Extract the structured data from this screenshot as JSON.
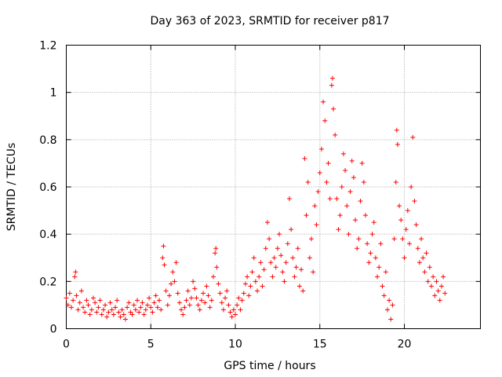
{
  "chart_data": {
    "type": "scatter",
    "title": "Day 363 of 2023, SRMTID for receiver p817",
    "xlabel": "GPS time / hours",
    "ylabel": "SRMTID / TECUs",
    "xlim": [
      0,
      24.5
    ],
    "ylim": [
      0,
      1.2
    ],
    "x_ticks": [
      0,
      5,
      10,
      15,
      20
    ],
    "x_tick_labels": [
      "0",
      "5",
      "10",
      "15",
      "20"
    ],
    "y_ticks": [
      0,
      0.2,
      0.4,
      0.6,
      0.8,
      1.0,
      1.2
    ],
    "y_tick_labels": [
      "0",
      "0.2",
      "0.4",
      "0.6",
      "0.8",
      "1",
      "1.2"
    ],
    "grid": true,
    "marker": "plus",
    "color": "#ff0000",
    "series": [
      {
        "name": "SRMTID",
        "points": [
          [
            0.0,
            0.13
          ],
          [
            0.1,
            0.1
          ],
          [
            0.2,
            0.15
          ],
          [
            0.3,
            0.09
          ],
          [
            0.4,
            0.12
          ],
          [
            0.5,
            0.22
          ],
          [
            0.55,
            0.24
          ],
          [
            0.6,
            0.14
          ],
          [
            0.7,
            0.08
          ],
          [
            0.8,
            0.11
          ],
          [
            0.9,
            0.16
          ],
          [
            1.0,
            0.09
          ],
          [
            1.1,
            0.07
          ],
          [
            1.2,
            0.12
          ],
          [
            1.3,
            0.1
          ],
          [
            1.4,
            0.06
          ],
          [
            1.5,
            0.08
          ],
          [
            1.6,
            0.13
          ],
          [
            1.7,
            0.11
          ],
          [
            1.8,
            0.07
          ],
          [
            1.9,
            0.09
          ],
          [
            2.0,
            0.12
          ],
          [
            2.1,
            0.06
          ],
          [
            2.2,
            0.08
          ],
          [
            2.3,
            0.1
          ],
          [
            2.4,
            0.05
          ],
          [
            2.5,
            0.07
          ],
          [
            2.6,
            0.11
          ],
          [
            2.7,
            0.08
          ],
          [
            2.8,
            0.06
          ],
          [
            2.9,
            0.09
          ],
          [
            3.0,
            0.12
          ],
          [
            3.1,
            0.07
          ],
          [
            3.2,
            0.05
          ],
          [
            3.3,
            0.08
          ],
          [
            3.4,
            0.06
          ],
          [
            3.5,
            0.04
          ],
          [
            3.6,
            0.09
          ],
          [
            3.7,
            0.11
          ],
          [
            3.8,
            0.07
          ],
          [
            3.9,
            0.06
          ],
          [
            4.0,
            0.1
          ],
          [
            4.1,
            0.08
          ],
          [
            4.2,
            0.12
          ],
          [
            4.3,
            0.07
          ],
          [
            4.4,
            0.09
          ],
          [
            4.5,
            0.11
          ],
          [
            4.6,
            0.06
          ],
          [
            4.7,
            0.08
          ],
          [
            4.8,
            0.1
          ],
          [
            4.9,
            0.13
          ],
          [
            5.0,
            0.09
          ],
          [
            5.1,
            0.07
          ],
          [
            5.2,
            0.11
          ],
          [
            5.3,
            0.14
          ],
          [
            5.4,
            0.09
          ],
          [
            5.5,
            0.12
          ],
          [
            5.6,
            0.08
          ],
          [
            5.7,
            0.3
          ],
          [
            5.75,
            0.35
          ],
          [
            5.8,
            0.27
          ],
          [
            5.9,
            0.16
          ],
          [
            6.0,
            0.1
          ],
          [
            6.1,
            0.14
          ],
          [
            6.2,
            0.19
          ],
          [
            6.3,
            0.24
          ],
          [
            6.4,
            0.2
          ],
          [
            6.5,
            0.28
          ],
          [
            6.6,
            0.15
          ],
          [
            6.7,
            0.11
          ],
          [
            6.8,
            0.08
          ],
          [
            6.9,
            0.06
          ],
          [
            7.0,
            0.09
          ],
          [
            7.1,
            0.12
          ],
          [
            7.2,
            0.16
          ],
          [
            7.3,
            0.1
          ],
          [
            7.4,
            0.13
          ],
          [
            7.5,
            0.2
          ],
          [
            7.6,
            0.17
          ],
          [
            7.7,
            0.13
          ],
          [
            7.8,
            0.1
          ],
          [
            7.9,
            0.08
          ],
          [
            8.0,
            0.12
          ],
          [
            8.1,
            0.15
          ],
          [
            8.2,
            0.11
          ],
          [
            8.3,
            0.18
          ],
          [
            8.4,
            0.14
          ],
          [
            8.5,
            0.09
          ],
          [
            8.6,
            0.12
          ],
          [
            8.7,
            0.22
          ],
          [
            8.8,
            0.32
          ],
          [
            8.85,
            0.34
          ],
          [
            8.9,
            0.26
          ],
          [
            9.0,
            0.19
          ],
          [
            9.1,
            0.15
          ],
          [
            9.2,
            0.11
          ],
          [
            9.3,
            0.08
          ],
          [
            9.4,
            0.13
          ],
          [
            9.5,
            0.16
          ],
          [
            9.6,
            0.1
          ],
          [
            9.7,
            0.07
          ],
          [
            9.8,
            0.05
          ],
          [
            9.9,
            0.08
          ],
          [
            10.0,
            0.06
          ],
          [
            10.1,
            0.1
          ],
          [
            10.2,
            0.13
          ],
          [
            10.3,
            0.08
          ],
          [
            10.4,
            0.12
          ],
          [
            10.5,
            0.15
          ],
          [
            10.6,
            0.19
          ],
          [
            10.7,
            0.22
          ],
          [
            10.8,
            0.14
          ],
          [
            10.9,
            0.18
          ],
          [
            11.0,
            0.24
          ],
          [
            11.1,
            0.3
          ],
          [
            11.2,
            0.2
          ],
          [
            11.3,
            0.16
          ],
          [
            11.4,
            0.22
          ],
          [
            11.5,
            0.28
          ],
          [
            11.6,
            0.18
          ],
          [
            11.7,
            0.25
          ],
          [
            11.8,
            0.34
          ],
          [
            11.9,
            0.45
          ],
          [
            12.0,
            0.38
          ],
          [
            12.1,
            0.28
          ],
          [
            12.2,
            0.22
          ],
          [
            12.3,
            0.3
          ],
          [
            12.4,
            0.26
          ],
          [
            12.5,
            0.34
          ],
          [
            12.6,
            0.4
          ],
          [
            12.7,
            0.31
          ],
          [
            12.8,
            0.24
          ],
          [
            12.9,
            0.2
          ],
          [
            13.0,
            0.28
          ],
          [
            13.1,
            0.36
          ],
          [
            13.2,
            0.55
          ],
          [
            13.3,
            0.42
          ],
          [
            13.4,
            0.3
          ],
          [
            13.5,
            0.22
          ],
          [
            13.6,
            0.26
          ],
          [
            13.7,
            0.34
          ],
          [
            13.8,
            0.18
          ],
          [
            13.9,
            0.25
          ],
          [
            14.0,
            0.16
          ],
          [
            14.1,
            0.72
          ],
          [
            14.2,
            0.48
          ],
          [
            14.3,
            0.62
          ],
          [
            14.4,
            0.3
          ],
          [
            14.5,
            0.38
          ],
          [
            14.6,
            0.24
          ],
          [
            14.7,
            0.52
          ],
          [
            14.8,
            0.44
          ],
          [
            14.9,
            0.58
          ],
          [
            15.0,
            0.66
          ],
          [
            15.1,
            0.76
          ],
          [
            15.2,
            0.96
          ],
          [
            15.3,
            0.88
          ],
          [
            15.4,
            0.62
          ],
          [
            15.5,
            0.7
          ],
          [
            15.6,
            0.55
          ],
          [
            15.7,
            1.03
          ],
          [
            15.75,
            1.06
          ],
          [
            15.8,
            0.93
          ],
          [
            15.9,
            0.82
          ],
          [
            16.0,
            0.55
          ],
          [
            16.1,
            0.42
          ],
          [
            16.2,
            0.48
          ],
          [
            16.3,
            0.6
          ],
          [
            16.4,
            0.74
          ],
          [
            16.5,
            0.67
          ],
          [
            16.6,
            0.52
          ],
          [
            16.7,
            0.4
          ],
          [
            16.8,
            0.58
          ],
          [
            16.9,
            0.71
          ],
          [
            17.0,
            0.64
          ],
          [
            17.1,
            0.46
          ],
          [
            17.2,
            0.34
          ],
          [
            17.3,
            0.38
          ],
          [
            17.4,
            0.54
          ],
          [
            17.5,
            0.7
          ],
          [
            17.6,
            0.62
          ],
          [
            17.7,
            0.48
          ],
          [
            17.8,
            0.36
          ],
          [
            17.9,
            0.28
          ],
          [
            18.0,
            0.32
          ],
          [
            18.1,
            0.4
          ],
          [
            18.2,
            0.45
          ],
          [
            18.3,
            0.3
          ],
          [
            18.4,
            0.22
          ],
          [
            18.5,
            0.26
          ],
          [
            18.6,
            0.36
          ],
          [
            18.7,
            0.18
          ],
          [
            18.8,
            0.14
          ],
          [
            18.9,
            0.24
          ],
          [
            19.0,
            0.08
          ],
          [
            19.1,
            0.12
          ],
          [
            19.2,
            0.04
          ],
          [
            19.3,
            0.1
          ],
          [
            19.4,
            0.38
          ],
          [
            19.5,
            0.62
          ],
          [
            19.55,
            0.84
          ],
          [
            19.6,
            0.78
          ],
          [
            19.7,
            0.52
          ],
          [
            19.8,
            0.46
          ],
          [
            19.9,
            0.38
          ],
          [
            20.0,
            0.3
          ],
          [
            20.1,
            0.42
          ],
          [
            20.2,
            0.5
          ],
          [
            20.3,
            0.36
          ],
          [
            20.4,
            0.6
          ],
          [
            20.5,
            0.81
          ],
          [
            20.6,
            0.54
          ],
          [
            20.7,
            0.44
          ],
          [
            20.8,
            0.34
          ],
          [
            20.9,
            0.28
          ],
          [
            21.0,
            0.38
          ],
          [
            21.1,
            0.3
          ],
          [
            21.2,
            0.24
          ],
          [
            21.3,
            0.32
          ],
          [
            21.4,
            0.2
          ],
          [
            21.5,
            0.26
          ],
          [
            21.6,
            0.18
          ],
          [
            21.7,
            0.22
          ],
          [
            21.8,
            0.14
          ],
          [
            21.9,
            0.2
          ],
          [
            22.0,
            0.16
          ],
          [
            22.1,
            0.12
          ],
          [
            22.2,
            0.18
          ],
          [
            22.3,
            0.22
          ],
          [
            22.4,
            0.15
          ]
        ]
      }
    ]
  }
}
